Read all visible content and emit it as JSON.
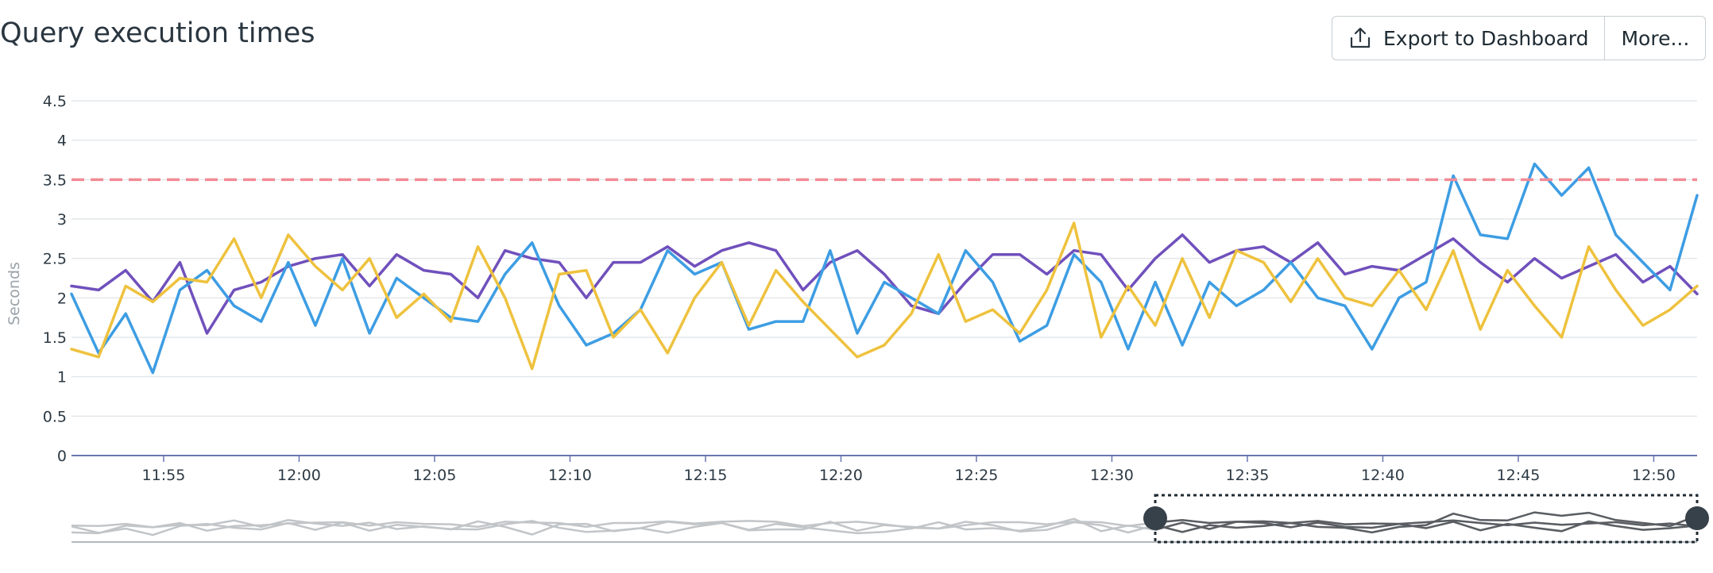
{
  "header": {
    "title": "Query execution times",
    "export_label": "Export to Dashboard",
    "more_label": "More..."
  },
  "colors": {
    "threshold": "#f28b96",
    "grid": "#e4e7ea",
    "axis": "#6a76b0",
    "navigator_line": "#c2c5c8",
    "navigator_selected": "#5a5e63"
  },
  "chart_data": {
    "type": "line",
    "title": "Query execution times",
    "ylabel": "Seconds",
    "xlabel": "",
    "ylim": [
      0,
      4.5
    ],
    "y_ticks": [
      "0",
      "0.5",
      "1",
      "1.5",
      "2",
      "2.5",
      "3",
      "3.5",
      "4",
      "4.5"
    ],
    "x_ticks": [
      "11:55",
      "12:00",
      "12:05",
      "12:10",
      "12:15",
      "12:20",
      "12:25",
      "12:30",
      "12:35",
      "12:40",
      "12:45",
      "12:50"
    ],
    "x_tick_minutes": [
      55,
      60,
      65,
      70,
      75,
      80,
      85,
      90,
      95,
      100,
      105,
      110
    ],
    "x_range_minutes": [
      51.6,
      111.6
    ],
    "threshold": 3.5,
    "grid": true,
    "legend": "none",
    "navigator_selection_minutes": [
      91.6,
      111.6
    ],
    "series": [
      {
        "color": "#7050bc",
        "x": [
          51.6,
          52.6,
          53.6,
          54.6,
          55.6,
          56.6,
          57.6,
          58.6,
          59.6,
          60.6,
          61.6,
          62.6,
          63.6,
          64.6,
          65.6,
          66.6,
          67.6,
          68.6,
          69.6,
          70.6,
          71.6,
          72.6,
          73.6,
          74.6,
          75.6,
          76.6,
          77.6,
          78.6,
          79.6,
          80.6,
          81.6,
          82.6,
          83.6,
          84.6,
          85.6,
          86.6,
          87.6,
          88.6,
          89.6,
          90.6,
          91.6,
          92.6,
          93.6,
          94.6,
          95.6,
          96.6,
          97.6,
          98.6,
          99.6,
          100.6,
          101.6,
          102.6,
          103.6,
          104.6,
          105.6,
          106.6,
          107.6,
          108.6,
          109.6,
          110.6,
          111.6
        ],
        "y": [
          2.15,
          2.1,
          2.35,
          1.95,
          2.45,
          1.55,
          2.1,
          2.2,
          2.4,
          2.5,
          2.55,
          2.15,
          2.55,
          2.35,
          2.3,
          2.0,
          2.6,
          2.5,
          2.45,
          2.0,
          2.45,
          2.45,
          2.65,
          2.4,
          2.6,
          2.7,
          2.6,
          2.1,
          2.45,
          2.6,
          2.3,
          1.9,
          1.8,
          2.2,
          2.55,
          2.55,
          2.3,
          2.6,
          2.55,
          2.1,
          2.5,
          2.8,
          2.45,
          2.6,
          2.65,
          2.45,
          2.7,
          2.3,
          2.4,
          2.35,
          2.55,
          2.75,
          2.45,
          2.2,
          2.5,
          2.25,
          2.4,
          2.55,
          2.2,
          2.4,
          2.05
        ]
      },
      {
        "color": "#3d9de3",
        "x": [
          51.6,
          52.6,
          53.6,
          54.6,
          55.6,
          56.6,
          57.6,
          58.6,
          59.6,
          60.6,
          61.6,
          62.6,
          63.6,
          64.6,
          65.6,
          66.6,
          67.6,
          68.6,
          69.6,
          70.6,
          71.6,
          72.6,
          73.6,
          74.6,
          75.6,
          76.6,
          77.6,
          78.6,
          79.6,
          80.6,
          81.6,
          82.6,
          83.6,
          84.6,
          85.6,
          86.6,
          87.6,
          88.6,
          89.6,
          90.6,
          91.6,
          92.6,
          93.6,
          94.6,
          95.6,
          96.6,
          97.6,
          98.6,
          99.6,
          100.6,
          101.6,
          102.6,
          103.6,
          104.6,
          105.6,
          106.6,
          107.6,
          108.6,
          109.6,
          110.6,
          111.6
        ],
        "y": [
          2.05,
          1.3,
          1.8,
          1.05,
          2.1,
          2.35,
          1.9,
          1.7,
          2.45,
          1.65,
          2.5,
          1.55,
          2.25,
          2.0,
          1.75,
          1.7,
          2.3,
          2.7,
          1.9,
          1.4,
          1.55,
          1.85,
          2.6,
          2.3,
          2.45,
          1.6,
          1.7,
          1.7,
          2.6,
          1.55,
          2.2,
          2.0,
          1.8,
          2.6,
          2.2,
          1.45,
          1.65,
          2.55,
          2.2,
          1.35,
          2.2,
          1.4,
          2.2,
          1.9,
          2.1,
          2.45,
          2.0,
          1.9,
          1.35,
          2.0,
          2.2,
          3.55,
          2.8,
          2.75,
          3.7,
          3.3,
          3.65,
          2.8,
          2.45,
          2.1,
          3.3
        ]
      },
      {
        "color": "#eec23e",
        "x": [
          51.6,
          52.6,
          53.6,
          54.6,
          55.6,
          56.6,
          57.6,
          58.6,
          59.6,
          60.6,
          61.6,
          62.6,
          63.6,
          64.6,
          65.6,
          66.6,
          67.6,
          68.6,
          69.6,
          70.6,
          71.6,
          72.6,
          73.6,
          74.6,
          75.6,
          76.6,
          77.6,
          78.6,
          79.6,
          80.6,
          81.6,
          82.6,
          83.6,
          84.6,
          85.6,
          86.6,
          87.6,
          88.6,
          89.6,
          90.6,
          91.6,
          92.6,
          93.6,
          94.6,
          95.6,
          96.6,
          97.6,
          98.6,
          99.6,
          100.6,
          101.6,
          102.6,
          103.6,
          104.6,
          105.6,
          106.6,
          107.6,
          108.6,
          109.6,
          110.6,
          111.6
        ],
        "y": [
          1.35,
          1.25,
          2.15,
          1.95,
          2.25,
          2.2,
          2.75,
          2.0,
          2.8,
          2.4,
          2.1,
          2.5,
          1.75,
          2.05,
          1.7,
          2.65,
          2.0,
          1.1,
          2.3,
          2.35,
          1.5,
          1.85,
          1.3,
          2.0,
          2.45,
          1.65,
          2.35,
          1.95,
          1.6,
          1.25,
          1.4,
          1.8,
          2.55,
          1.7,
          1.85,
          1.55,
          2.1,
          2.95,
          1.5,
          2.15,
          1.65,
          2.5,
          1.75,
          2.6,
          2.45,
          1.95,
          2.5,
          2.0,
          1.9,
          2.35,
          1.85,
          2.6,
          1.6,
          2.35,
          1.9,
          1.5,
          2.65,
          2.1,
          1.65,
          1.85,
          2.15
        ]
      }
    ]
  }
}
